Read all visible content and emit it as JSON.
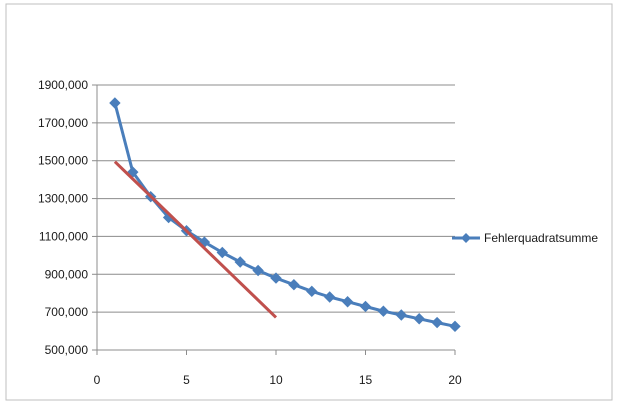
{
  "chart_data": {
    "type": "line",
    "x_ticks": [
      0,
      5,
      10,
      15,
      20
    ],
    "y_ticks": [
      500000,
      700000,
      900000,
      1100000,
      1300000,
      1500000,
      1700000,
      1900000
    ],
    "y_tick_labels": [
      "500,000",
      "700,000",
      "900,000",
      "1100,000",
      "1300,000",
      "1500,000",
      "1700,000",
      "1900,000"
    ],
    "x_tick_labels": [
      "0",
      "5",
      "10",
      "15",
      "20"
    ],
    "xlim": [
      0,
      20
    ],
    "ylim": [
      500000,
      1900000
    ],
    "grid": "horizontal",
    "legend_position": "right",
    "series": [
      {
        "name": "Fehlerquadratsumme",
        "color": "#4a7ebb",
        "marker": "diamond",
        "x": [
          1,
          2,
          3,
          4,
          5,
          6,
          7,
          8,
          9,
          10,
          11,
          12,
          13,
          14,
          15,
          16,
          17,
          18,
          19,
          20
        ],
        "y": [
          1805000,
          1440000,
          1310000,
          1200000,
          1130000,
          1070000,
          1015000,
          965000,
          920000,
          880000,
          845000,
          810000,
          780000,
          755000,
          730000,
          705000,
          685000,
          665000,
          645000,
          625000
        ]
      },
      {
        "color": "#c0504d",
        "marker": "none",
        "x": [
          1,
          10
        ],
        "y": [
          1495000,
          672000
        ]
      }
    ]
  }
}
